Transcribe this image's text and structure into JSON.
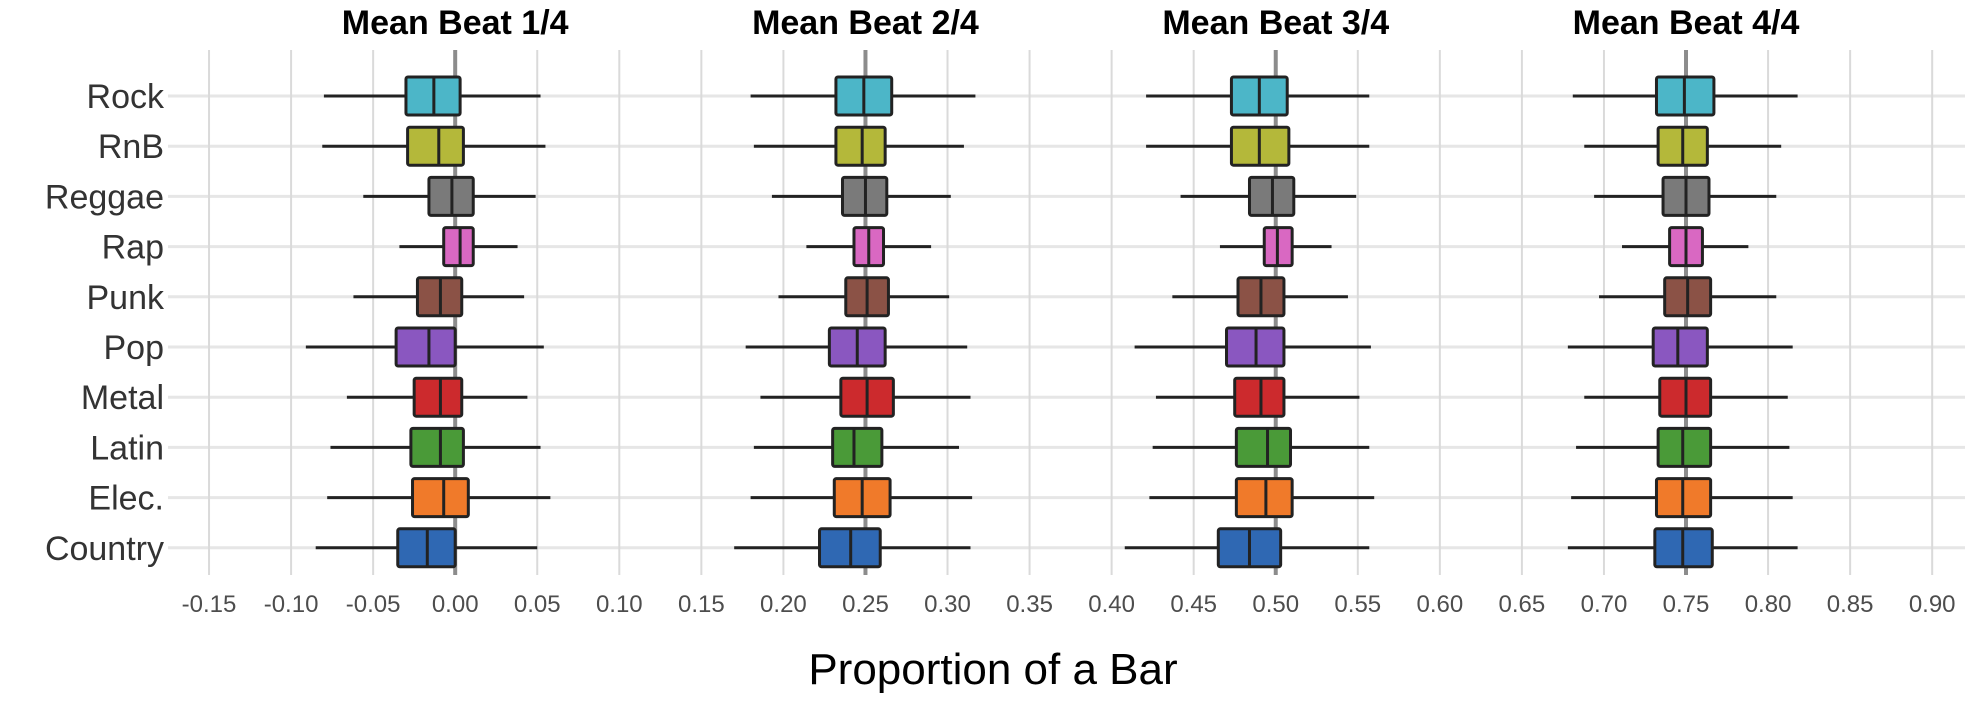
{
  "chart_data": {
    "type": "box",
    "facets": [
      "Mean Beat 1/4",
      "Mean Beat 2/4",
      "Mean Beat 3/4",
      "Mean Beat 4/4"
    ],
    "categories": [
      "Rock",
      "RnB",
      "Reggae",
      "Rap",
      "Punk",
      "Pop",
      "Metal",
      "Latin",
      "Elec.",
      "Country"
    ],
    "xlabel": "Proportion of a Bar",
    "x_ticks": [
      "-0.15",
      "-0.10",
      "-0.05",
      "0.00",
      "0.05",
      "0.10",
      "0.15",
      "0.20",
      "0.25",
      "0.30",
      "0.35",
      "0.40",
      "0.45",
      "0.50",
      "0.55",
      "0.60",
      "0.65",
      "0.70",
      "0.75",
      "0.80",
      "0.85",
      "0.90"
    ],
    "xlim": [
      -0.175,
      0.92
    ],
    "reference_lines": [
      0.0,
      0.25,
      0.5,
      0.75
    ],
    "colors": {
      "Rock": "#4cb6c8",
      "RnB": "#b4b83a",
      "Reggae": "#7a7a7a",
      "Rap": "#d968c2",
      "Punk": "#8b5246",
      "Pop": "#8a57c0",
      "Metal": "#cc2a2d",
      "Latin": "#4a9a38",
      "Elec.": "#f07a2a",
      "Country": "#2f68b3"
    },
    "series": [
      {
        "facet": "Mean Beat 1/4",
        "boxes": {
          "Rock": {
            "whisker_low": -0.08,
            "q1": -0.03,
            "median": -0.013,
            "q3": 0.003,
            "whisker_high": 0.052
          },
          "RnB": {
            "whisker_low": -0.081,
            "q1": -0.029,
            "median": -0.01,
            "q3": 0.005,
            "whisker_high": 0.055
          },
          "Reggae": {
            "whisker_low": -0.056,
            "q1": -0.016,
            "median": -0.002,
            "q3": 0.011,
            "whisker_high": 0.049
          },
          "Rap": {
            "whisker_low": -0.034,
            "q1": -0.007,
            "median": 0.003,
            "q3": 0.011,
            "whisker_high": 0.038
          },
          "Punk": {
            "whisker_low": -0.062,
            "q1": -0.023,
            "median": -0.009,
            "q3": 0.004,
            "whisker_high": 0.042
          },
          "Pop": {
            "whisker_low": -0.091,
            "q1": -0.036,
            "median": -0.016,
            "q3": 0.0,
            "whisker_high": 0.054
          },
          "Metal": {
            "whisker_low": -0.066,
            "q1": -0.025,
            "median": -0.009,
            "q3": 0.004,
            "whisker_high": 0.044
          },
          "Latin": {
            "whisker_low": -0.076,
            "q1": -0.027,
            "median": -0.009,
            "q3": 0.005,
            "whisker_high": 0.052
          },
          "Elec.": {
            "whisker_low": -0.078,
            "q1": -0.026,
            "median": -0.007,
            "q3": 0.008,
            "whisker_high": 0.058
          },
          "Country": {
            "whisker_low": -0.085,
            "q1": -0.035,
            "median": -0.017,
            "q3": 0.0,
            "whisker_high": 0.05
          }
        }
      },
      {
        "facet": "Mean Beat 2/4",
        "boxes": {
          "Rock": {
            "whisker_low": 0.18,
            "q1": 0.232,
            "median": 0.249,
            "q3": 0.266,
            "whisker_high": 0.317
          },
          "RnB": {
            "whisker_low": 0.182,
            "q1": 0.232,
            "median": 0.248,
            "q3": 0.262,
            "whisker_high": 0.31
          },
          "Reggae": {
            "whisker_low": 0.193,
            "q1": 0.236,
            "median": 0.25,
            "q3": 0.263,
            "whisker_high": 0.302
          },
          "Rap": {
            "whisker_low": 0.214,
            "q1": 0.243,
            "median": 0.252,
            "q3": 0.261,
            "whisker_high": 0.29
          },
          "Punk": {
            "whisker_low": 0.197,
            "q1": 0.238,
            "median": 0.251,
            "q3": 0.264,
            "whisker_high": 0.301
          },
          "Pop": {
            "whisker_low": 0.177,
            "q1": 0.228,
            "median": 0.245,
            "q3": 0.262,
            "whisker_high": 0.312
          },
          "Metal": {
            "whisker_low": 0.186,
            "q1": 0.235,
            "median": 0.251,
            "q3": 0.267,
            "whisker_high": 0.314
          },
          "Latin": {
            "whisker_low": 0.182,
            "q1": 0.23,
            "median": 0.243,
            "q3": 0.26,
            "whisker_high": 0.307
          },
          "Elec.": {
            "whisker_low": 0.18,
            "q1": 0.231,
            "median": 0.248,
            "q3": 0.265,
            "whisker_high": 0.315
          },
          "Country": {
            "whisker_low": 0.17,
            "q1": 0.222,
            "median": 0.241,
            "q3": 0.259,
            "whisker_high": 0.314
          }
        }
      },
      {
        "facet": "Mean Beat 3/4",
        "boxes": {
          "Rock": {
            "whisker_low": 0.421,
            "q1": 0.473,
            "median": 0.49,
            "q3": 0.507,
            "whisker_high": 0.557
          },
          "RnB": {
            "whisker_low": 0.421,
            "q1": 0.473,
            "median": 0.49,
            "q3": 0.508,
            "whisker_high": 0.557
          },
          "Reggae": {
            "whisker_low": 0.442,
            "q1": 0.484,
            "median": 0.498,
            "q3": 0.511,
            "whisker_high": 0.549
          },
          "Rap": {
            "whisker_low": 0.466,
            "q1": 0.493,
            "median": 0.501,
            "q3": 0.51,
            "whisker_high": 0.534
          },
          "Punk": {
            "whisker_low": 0.437,
            "q1": 0.477,
            "median": 0.491,
            "q3": 0.505,
            "whisker_high": 0.544
          },
          "Pop": {
            "whisker_low": 0.414,
            "q1": 0.47,
            "median": 0.488,
            "q3": 0.505,
            "whisker_high": 0.558
          },
          "Metal": {
            "whisker_low": 0.427,
            "q1": 0.475,
            "median": 0.491,
            "q3": 0.505,
            "whisker_high": 0.551
          },
          "Latin": {
            "whisker_low": 0.425,
            "q1": 0.476,
            "median": 0.495,
            "q3": 0.509,
            "whisker_high": 0.557
          },
          "Elec.": {
            "whisker_low": 0.423,
            "q1": 0.476,
            "median": 0.494,
            "q3": 0.51,
            "whisker_high": 0.56
          },
          "Country": {
            "whisker_low": 0.408,
            "q1": 0.465,
            "median": 0.484,
            "q3": 0.503,
            "whisker_high": 0.557
          }
        }
      },
      {
        "facet": "Mean Beat 4/4",
        "boxes": {
          "Rock": {
            "whisker_low": 0.681,
            "q1": 0.732,
            "median": 0.749,
            "q3": 0.767,
            "whisker_high": 0.818
          },
          "RnB": {
            "whisker_low": 0.688,
            "q1": 0.733,
            "median": 0.748,
            "q3": 0.763,
            "whisker_high": 0.808
          },
          "Reggae": {
            "whisker_low": 0.694,
            "q1": 0.736,
            "median": 0.75,
            "q3": 0.764,
            "whisker_high": 0.805
          },
          "Rap": {
            "whisker_low": 0.711,
            "q1": 0.74,
            "median": 0.75,
            "q3": 0.76,
            "whisker_high": 0.788
          },
          "Punk": {
            "whisker_low": 0.697,
            "q1": 0.737,
            "median": 0.751,
            "q3": 0.765,
            "whisker_high": 0.805
          },
          "Pop": {
            "whisker_low": 0.678,
            "q1": 0.73,
            "median": 0.745,
            "q3": 0.763,
            "whisker_high": 0.815
          },
          "Metal": {
            "whisker_low": 0.688,
            "q1": 0.734,
            "median": 0.75,
            "q3": 0.765,
            "whisker_high": 0.812
          },
          "Latin": {
            "whisker_low": 0.683,
            "q1": 0.733,
            "median": 0.748,
            "q3": 0.765,
            "whisker_high": 0.813
          },
          "Elec.": {
            "whisker_low": 0.68,
            "q1": 0.732,
            "median": 0.748,
            "q3": 0.765,
            "whisker_high": 0.815
          },
          "Country": {
            "whisker_low": 0.678,
            "q1": 0.731,
            "median": 0.748,
            "q3": 0.766,
            "whisker_high": 0.818
          }
        }
      }
    ]
  }
}
